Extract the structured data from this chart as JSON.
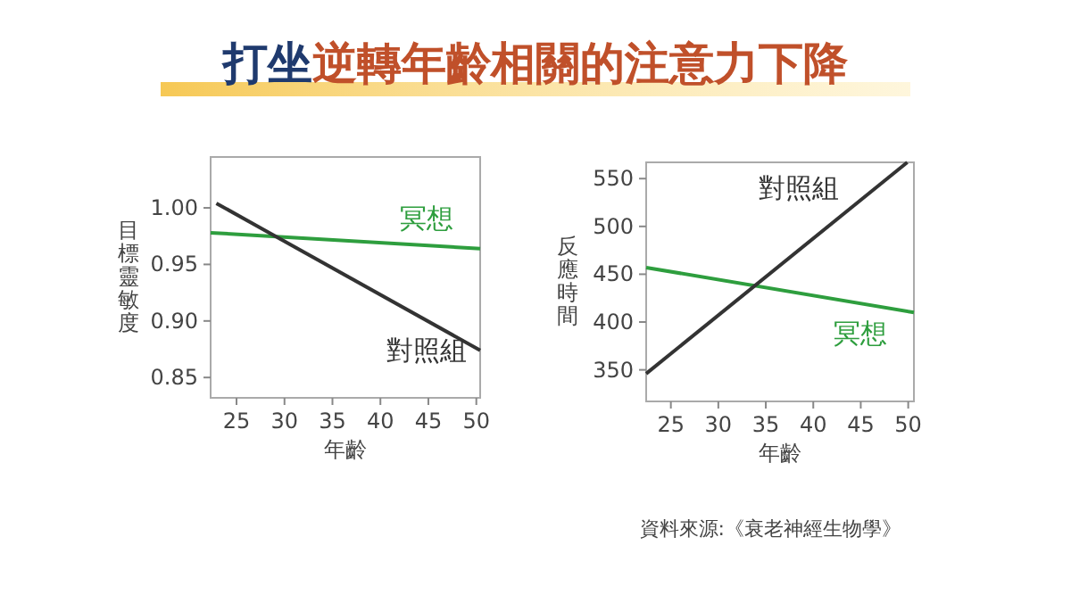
{
  "chart_data": [
    {
      "type": "line",
      "title": "打坐逆轉年齡相關的注意力下降",
      "xlabel": "年齡",
      "ylabel": "目標靈敏度",
      "xlim": [
        22.3,
        50.4
      ],
      "xticks": [
        25,
        30,
        35,
        40,
        45,
        50
      ],
      "ylim": [
        0.832,
        1.045
      ],
      "yticks": [
        {
          "value": 0.85,
          "label": "0.85"
        },
        {
          "value": 0.9,
          "label": "0.90"
        },
        {
          "value": 0.95,
          "label": "0.95"
        },
        {
          "value": 1.0,
          "label": "1.00"
        }
      ],
      "grid": false,
      "legend": false,
      "series": [
        {
          "name": "冥想",
          "color": "#2e9e3e",
          "x": [
            22.3,
            50.4
          ],
          "values": [
            0.978,
            0.964
          ]
        },
        {
          "name": "對照組",
          "color": "#333333",
          "x": [
            22.9,
            50.4
          ],
          "values": [
            1.004,
            0.874
          ]
        }
      ]
    },
    {
      "type": "line",
      "xlabel": "年齡",
      "ylabel": "反應時間",
      "xlim": [
        22.4,
        50.6
      ],
      "xticks": [
        25,
        30,
        35,
        40,
        45,
        50
      ],
      "ylim": [
        317,
        567
      ],
      "yticks": [
        350,
        400,
        450,
        500,
        550
      ],
      "grid": false,
      "legend": false,
      "annotations": [
        "資料來源:《衰老神經生物學》"
      ],
      "series": [
        {
          "name": "冥想",
          "color": "#2e9e3e",
          "x": [
            22.4,
            50.6
          ],
          "values": [
            457,
            410
          ]
        },
        {
          "name": "對照組",
          "color": "#333333",
          "x": [
            22.4,
            49.9
          ],
          "values": [
            346,
            567
          ]
        }
      ]
    }
  ]
}
